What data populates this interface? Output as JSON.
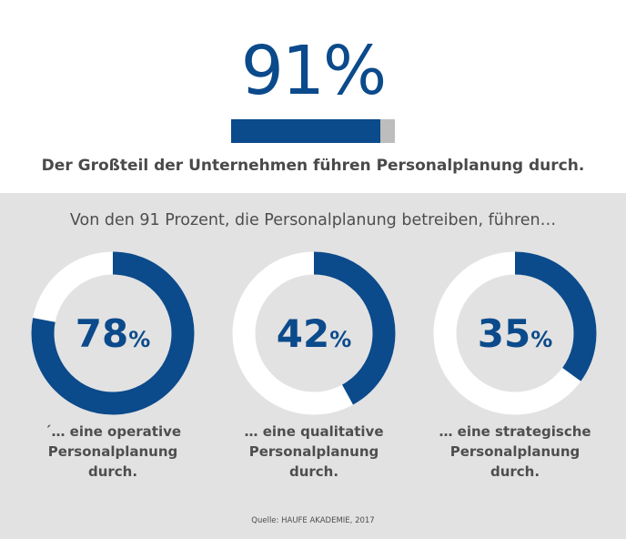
{
  "headline_stat": {
    "value": "91%",
    "bar_fraction": 0.91,
    "caption": "Der Großteil der Unternehmen führen Personalplanung durch."
  },
  "subheading": "Von den 91 Prozent, die Personalplanung betreiben, führen…",
  "chart_data": [
    {
      "type": "pie",
      "donut": true,
      "value": 78,
      "label_number": "78",
      "label_unit": "%",
      "description": [
        "´… eine operative",
        "Personalplanung",
        "durch."
      ]
    },
    {
      "type": "pie",
      "donut": true,
      "value": 42,
      "label_number": "42",
      "label_unit": "%",
      "description": [
        "… eine qualitative",
        "Personalplanung",
        "durch."
      ]
    },
    {
      "type": "pie",
      "donut": true,
      "value": 35,
      "label_number": "35",
      "label_unit": "%",
      "description": [
        "… eine strategische",
        "Personalplanung",
        "durch."
      ]
    }
  ],
  "source": "Quelle: HAUFE AKADEMIE, 2017",
  "colors": {
    "accent": "#0b4a8b",
    "track": "#ffffff",
    "bar_remainder": "#bdbdbd",
    "panel_background": "#e2e2e2",
    "text": "#4e4e4e"
  }
}
